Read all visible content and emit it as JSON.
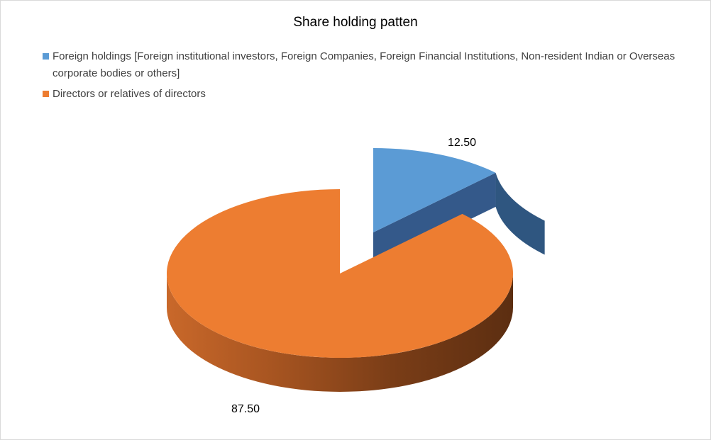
{
  "chart_data": {
    "type": "pie",
    "title": "Share holding patten",
    "categories": [
      "Foreign holdings [Foreign institutional investors, Foreign Companies, Foreign Financial Institutions, Non-resident Indian or Overseas corporate bodies or others]",
      "Directors or relatives of directors"
    ],
    "values": [
      12.5,
      87.5
    ],
    "data_labels": [
      "12.50",
      "87.50"
    ],
    "colors": [
      "#5b9bd5",
      "#ed7d31"
    ],
    "legend_position": "top-left",
    "style": "3d-exploded"
  }
}
